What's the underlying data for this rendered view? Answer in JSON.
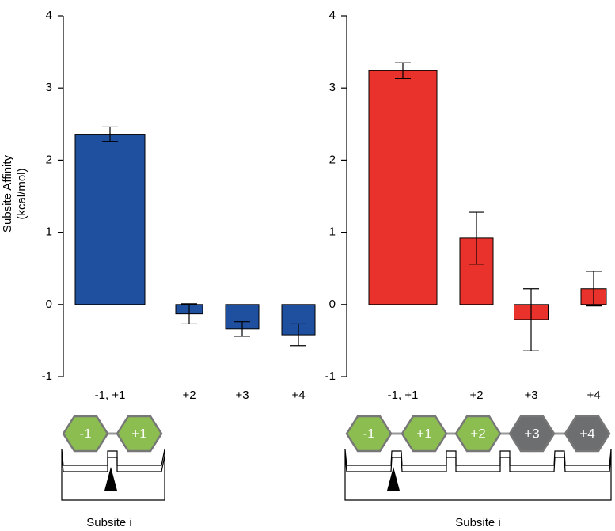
{
  "chart_data": [
    {
      "type": "bar",
      "ylabel": [
        "Subsite Affinity",
        "(kcal/mol)"
      ],
      "categories": [
        "-1, +1",
        "+2",
        "+3",
        "+4"
      ],
      "values": [
        2.36,
        -0.13,
        -0.34,
        -0.42
      ],
      "errors": [
        0.1,
        0.14,
        0.1,
        0.15
      ],
      "color": "#1f4f9f",
      "ylim": [
        -1,
        4
      ],
      "yticks": [
        -1,
        0,
        1,
        2,
        3,
        4
      ],
      "subsites": [
        {
          "label": "-1",
          "color": "#8cbd50"
        },
        {
          "label": "+1",
          "color": "#8cbd50"
        }
      ],
      "xlabel": "Subsite i"
    },
    {
      "type": "bar",
      "categories": [
        "-1, +1",
        "+2",
        "+3",
        "+4"
      ],
      "values": [
        3.24,
        0.92,
        -0.21,
        0.22
      ],
      "errors": [
        0.11,
        0.36,
        0.43,
        0.24
      ],
      "color": "#e8322b",
      "ylim": [
        -1,
        4
      ],
      "yticks": [
        -1,
        0,
        1,
        2,
        3,
        4
      ],
      "subsites": [
        {
          "label": "-1",
          "color": "#8cbd50"
        },
        {
          "label": "+1",
          "color": "#8cbd50"
        },
        {
          "label": "+2",
          "color": "#8cbd50"
        },
        {
          "label": "+3",
          "color": "#6d6e70"
        },
        {
          "label": "+4",
          "color": "#6d6e70"
        }
      ],
      "xlabel": "Subsite i"
    }
  ]
}
